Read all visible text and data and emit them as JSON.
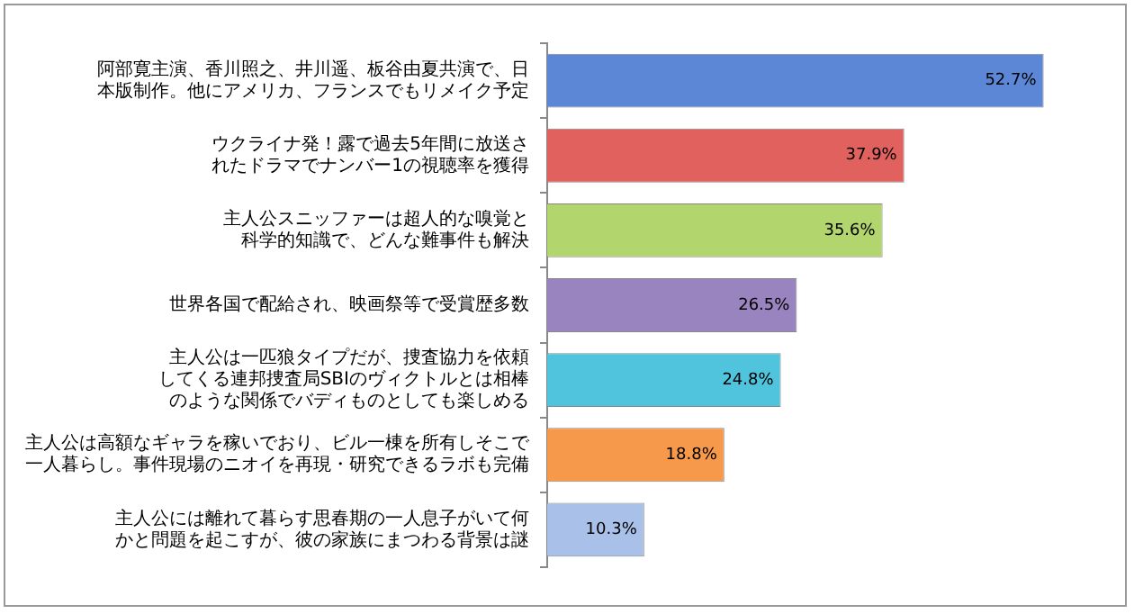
{
  "chart_data": {
    "type": "bar",
    "orientation": "horizontal",
    "categories": [
      "阿部寛主演、香川照之、井川遥、板谷由夏共演で、日本版制作。他にアメリカ、フランスでもリメイク予定",
      "ウクライナ発！露で過去5年間に放送されたドラマでナンバー1の視聴率を獲得",
      "主人公スニッファーは超人的な嗅覚と科学的知識で、どんな難事件も解決",
      "世界各国で配給され、映画祭等で受賞歴多数",
      "主人公は一匹狼タイプだが、捜査協力を依頼してくる連邦捜査局SBIのヴィクトルとは相棒のような関係でバディものとしても楽しめる",
      "主人公は高額なギャラを稼いでおり、ビル一棟を所有しそこで一人暮らし。事件現場のニオイを再現・研究できるラボも完備",
      "主人公には離れて暮らす思春期の一人息子がいて何かと問題を起こすが、彼の家族にまつわる背景は謎"
    ],
    "values": [
      52.7,
      37.9,
      35.6,
      26.5,
      24.8,
      18.8,
      10.3
    ],
    "value_labels": [
      "52.7%",
      "37.9%",
      "35.6%",
      "26.5%",
      "24.8%",
      "18.8%",
      "10.3%"
    ],
    "colors": [
      "#5b87d6",
      "#e0615d",
      "#b3d56e",
      "#9a84bf",
      "#4fc4dc",
      "#f7994a",
      "#a9c1e8"
    ],
    "grid": false,
    "legend": false,
    "tick_labels": "y"
  }
}
